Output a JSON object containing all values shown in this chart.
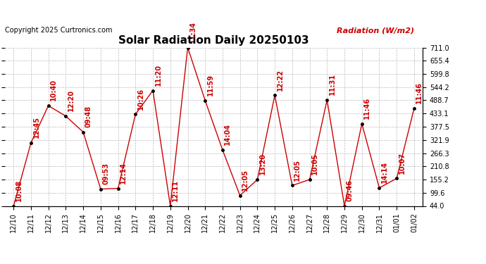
{
  "title": "Solar Radiation Daily 20250103",
  "copyright": "Copyright 2025 Curtronics.com",
  "ylabel": "Radiation (W/m2)",
  "x_labels": [
    "12/10",
    "12/11",
    "12/12",
    "12/13",
    "12/14",
    "12/15",
    "12/16",
    "12/17",
    "12/18",
    "12/19",
    "12/20",
    "12/21",
    "12/22",
    "12/23",
    "12/24",
    "12/25",
    "12/26",
    "12/27",
    "12/28",
    "12/29",
    "12/30",
    "12/31",
    "01/01",
    "01/02"
  ],
  "y_values": [
    44.0,
    310.0,
    466.0,
    422.0,
    355.0,
    115.0,
    118.0,
    430.0,
    530.0,
    44.0,
    711.0,
    488.0,
    280.0,
    88.0,
    155.0,
    510.0,
    130.0,
    155.0,
    490.0,
    44.0,
    390.0,
    120.0,
    160.0,
    455.0
  ],
  "point_labels": [
    "10:08",
    "12:45",
    "10:40",
    "12:20",
    "09:48",
    "09:53",
    "12:14",
    "10:26",
    "11:20",
    "12:11",
    "11:34",
    "11:59",
    "14:04",
    "12:05",
    "13:20",
    "12:22",
    "12:05",
    "10:05",
    "11:31",
    "09:46",
    "11:46",
    "14:14",
    "10:07",
    "11:46"
  ],
  "ylim_min": 44.0,
  "ylim_max": 711.0,
  "yticks": [
    44.0,
    99.6,
    155.2,
    210.8,
    266.3,
    321.9,
    377.5,
    433.1,
    488.7,
    544.2,
    599.8,
    655.4,
    711.0
  ],
  "line_color": "#cc0000",
  "point_color": "#000000",
  "label_color": "#cc0000",
  "background_color": "#ffffff",
  "grid_color": "#aaaaaa",
  "title_fontsize": 11,
  "copyright_fontsize": 7,
  "tick_fontsize": 7,
  "annotation_fontsize": 7
}
